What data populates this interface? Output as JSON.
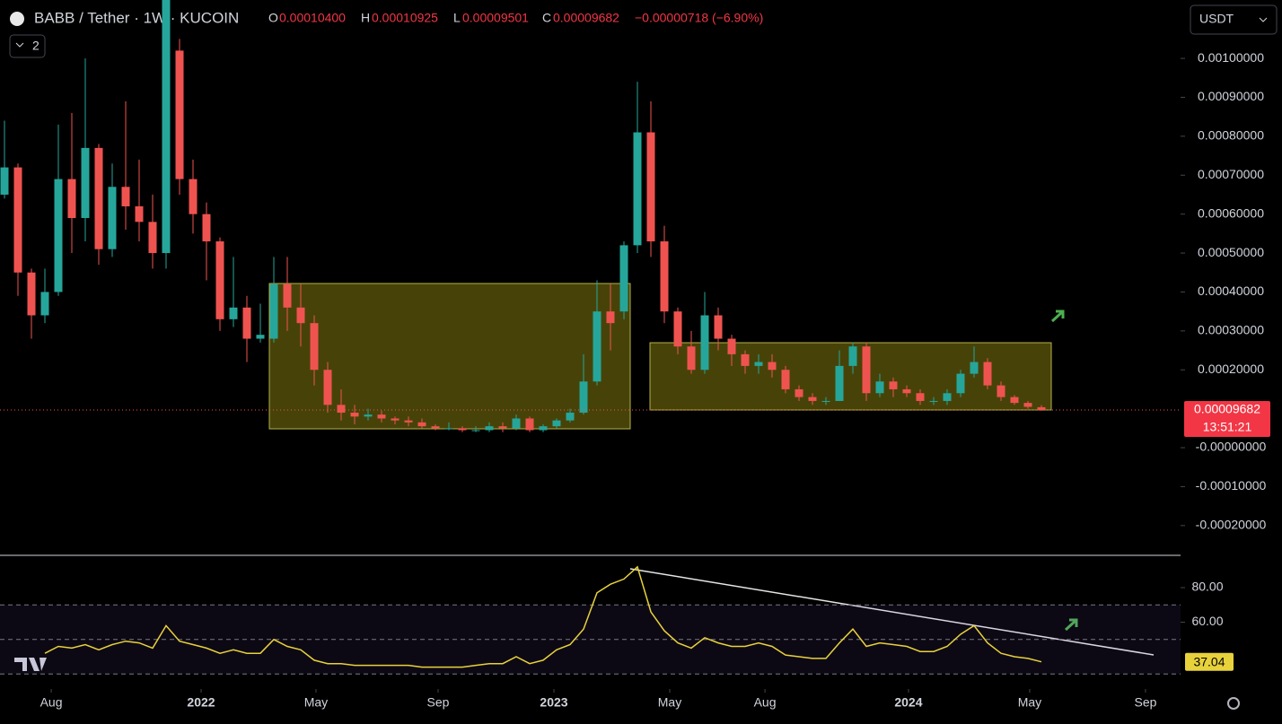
{
  "header": {
    "symbol": "BABB / Tether · 1W · KUCOIN",
    "open_key": "O",
    "open": "0.00010400",
    "high_key": "H",
    "high": "0.00010925",
    "low_key": "L",
    "low": "0.00009501",
    "close_key": "C",
    "close": "0.00009682",
    "change": "−0.00000718 (−6.90%)",
    "indicators": "2",
    "currency": "USDT"
  },
  "chart_data": [
    {
      "type": "candlestick",
      "up_color": "#26a69a",
      "down_color": "#ef5350",
      "open": [
        0.00065,
        0.00072,
        0.00045,
        0.00034,
        0.0004,
        0.00069,
        0.00059,
        0.00077,
        0.00051,
        0.00067,
        0.00062,
        0.00058,
        0.0005,
        0.00102,
        0.00069,
        0.0006,
        0.00053,
        0.00033,
        0.00036,
        0.00028,
        0.00028,
        0.00042,
        0.00036,
        0.00032,
        0.0002,
        0.00011,
        9e-05,
        8e-05,
        8.5e-05,
        7.5e-05,
        7e-05,
        6.5e-05,
        5.5e-05,
        5e-05,
        5e-05,
        4.5e-05,
        4.5e-05,
        5.5e-05,
        5e-05,
        7.5e-05,
        4.5e-05,
        5.5e-05,
        7e-05,
        9e-05,
        0.00017,
        0.00035,
        0.00035,
        0.00052,
        0.00081,
        0.00053,
        0.00035,
        0.00026,
        0.0002,
        0.00034,
        0.00028,
        0.00024,
        0.00021,
        0.00022,
        0.0002,
        0.00015,
        0.00013,
        0.00012,
        0.00012,
        0.00021,
        0.00026,
        0.00014,
        0.00017,
        0.00015,
        0.00014,
        0.00012,
        0.00012,
        0.00014,
        0.00019,
        0.00022,
        0.00016,
        0.00013,
        0.000115,
        0.000104
      ],
      "high": [
        0.00084,
        0.00073,
        0.00046,
        0.00046,
        0.00083,
        0.00086,
        0.001,
        0.00078,
        0.00073,
        0.00089,
        0.00074,
        0.00065,
        0.00115,
        0.00105,
        0.00074,
        0.00063,
        0.00054,
        0.00049,
        0.00039,
        0.00037,
        0.00049,
        0.00049,
        0.00042,
        0.00034,
        0.00022,
        0.00015,
        0.00011,
        0.0001,
        9.5e-05,
        8e-05,
        8e-05,
        7.5e-05,
        6e-05,
        6.5e-05,
        5.5e-05,
        5.5e-05,
        6.5e-05,
        6.5e-05,
        8.5e-05,
        8e-05,
        6e-05,
        7.5e-05,
        0.0001,
        0.00024,
        0.00043,
        0.00042,
        0.00053,
        0.00094,
        0.00089,
        0.00057,
        0.00036,
        0.0003,
        0.0004,
        0.00036,
        0.00029,
        0.00025,
        0.00024,
        0.00024,
        0.00021,
        0.00016,
        0.00014,
        0.00013,
        0.00025,
        0.00027,
        0.00027,
        0.00019,
        0.00018,
        0.00016,
        0.00015,
        0.00013,
        0.00015,
        0.0002,
        0.00026,
        0.00023,
        0.00017,
        0.000135,
        0.00012,
        0.00010925
      ],
      "low": [
        0.00064,
        0.00039,
        0.00028,
        0.00032,
        0.00039,
        0.0005,
        0.00053,
        0.00047,
        0.00049,
        0.00056,
        0.00053,
        0.00046,
        0.00046,
        0.00065,
        0.00055,
        0.00043,
        0.0003,
        0.00031,
        0.00022,
        0.00027,
        0.00027,
        0.0003,
        0.00026,
        0.00016,
        9e-05,
        7e-05,
        6e-05,
        7e-05,
        6.5e-05,
        6e-05,
        5.5e-05,
        5e-05,
        4.5e-05,
        4.5e-05,
        4e-05,
        4e-05,
        4e-05,
        4e-05,
        4.5e-05,
        4e-05,
        4e-05,
        5e-05,
        6.5e-05,
        8.5e-05,
        0.00016,
        0.00025,
        0.00033,
        0.0005,
        0.00049,
        0.00032,
        0.00024,
        0.00019,
        0.00019,
        0.00025,
        0.00021,
        0.00019,
        0.00019,
        0.00018,
        0.00014,
        0.00012,
        0.00011,
        0.00011,
        0.00012,
        0.00019,
        0.00012,
        0.00013,
        0.00013,
        0.00013,
        0.00011,
        0.00011,
        0.00011,
        0.00013,
        0.00018,
        0.00015,
        0.00012,
        0.00011,
        0.0001,
        9.501e-05
      ],
      "close": [
        0.00072,
        0.00045,
        0.00034,
        0.0004,
        0.00069,
        0.00059,
        0.00077,
        0.00051,
        0.00067,
        0.00062,
        0.00058,
        0.0005,
        0.00115,
        0.00069,
        0.0006,
        0.00053,
        0.00033,
        0.00036,
        0.00028,
        0.00029,
        0.00042,
        0.00036,
        0.00032,
        0.0002,
        0.00011,
        9e-05,
        8e-05,
        8.5e-05,
        7.5e-05,
        7e-05,
        6.5e-05,
        5.5e-05,
        5e-05,
        5e-05,
        4.5e-05,
        4.5e-05,
        5.5e-05,
        5e-05,
        7.5e-05,
        4.5e-05,
        5.5e-05,
        7e-05,
        9e-05,
        0.00017,
        0.00035,
        0.00032,
        0.00052,
        0.00081,
        0.00053,
        0.00035,
        0.00026,
        0.0002,
        0.00034,
        0.00028,
        0.00024,
        0.00021,
        0.00022,
        0.0002,
        0.00015,
        0.00013,
        0.00012,
        0.00012,
        0.00021,
        0.00026,
        0.00014,
        0.00017,
        0.00015,
        0.00014,
        0.00012,
        0.00012,
        0.00014,
        0.00019,
        0.00022,
        0.00016,
        0.00013,
        0.000115,
        0.000105,
        9.682e-05
      ],
      "last_price_label": "0.00009682",
      "countdown": "13:51:21",
      "xlim": [
        -0.333,
        87.333
      ],
      "xticks": [
        {
          "value": 3.47,
          "label": "Aug"
        },
        {
          "value": 14.6,
          "label": "2022"
        },
        {
          "value": 23.13,
          "label": "May"
        },
        {
          "value": 32.2,
          "label": "Sep"
        },
        {
          "value": 40.8,
          "label": "2023"
        },
        {
          "value": 49.4,
          "label": "May"
        },
        {
          "value": 56.47,
          "label": "Aug"
        },
        {
          "value": 67.13,
          "label": "2024"
        },
        {
          "value": 76.13,
          "label": "May"
        },
        {
          "value": 84.73,
          "label": "Sep"
        }
      ],
      "ylim": [
        -0.00025,
        0.00115
      ],
      "yticks": [
        {
          "value": 0.001,
          "label": "0.00100000"
        },
        {
          "value": 0.0009,
          "label": "0.00090000"
        },
        {
          "value": 0.0008,
          "label": "0.00080000"
        },
        {
          "value": 0.0007,
          "label": "0.00070000"
        },
        {
          "value": 0.0006,
          "label": "0.00060000"
        },
        {
          "value": 0.0005,
          "label": "0.00050000"
        },
        {
          "value": 0.0004,
          "label": "0.00040000"
        },
        {
          "value": 0.0003,
          "label": "0.00030000"
        },
        {
          "value": 0.0002,
          "label": "0.00020000"
        },
        {
          "value": 0,
          "label": "-0.00000000"
        },
        {
          "value": -0.0001,
          "label": "-0.00010000"
        },
        {
          "value": -0.0002,
          "label": "-0.00020000"
        }
      ]
    },
    {
      "type": "line",
      "color": "#e8d23c",
      "values": [
        null,
        null,
        null,
        42,
        46,
        45,
        47,
        44,
        47,
        49,
        48,
        45,
        58,
        49,
        47,
        45,
        42,
        44,
        42,
        42,
        50,
        46,
        44,
        38,
        36,
        36,
        35,
        35,
        35,
        35,
        35,
        34,
        34,
        34,
        34,
        35,
        36,
        36,
        40,
        36,
        38,
        44,
        47,
        56,
        77,
        82,
        85,
        92,
        66,
        55,
        48,
        45,
        51,
        48,
        46,
        46,
        48,
        46,
        41,
        40,
        39,
        39,
        48,
        56,
        46,
        48,
        47,
        46,
        43,
        43,
        46,
        53,
        58,
        48,
        42,
        40,
        39,
        37.04
      ],
      "ylim": [
        21.3,
        98.2
      ],
      "yticks": [
        {
          "value": 80,
          "label": "80.00"
        },
        {
          "value": 60,
          "label": "60.00"
        }
      ],
      "levels": [
        70,
        50,
        30
      ]
    }
  ]
}
